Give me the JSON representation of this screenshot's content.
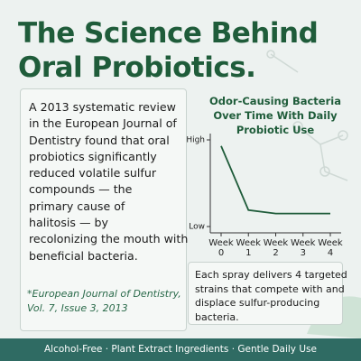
{
  "header": {
    "title_lines": [
      "The Science Behind",
      "Oral Probiotics."
    ]
  },
  "body": {
    "lines": [
      "A 2013 systematic review",
      "in the European Journal of",
      "Dentistry found that oral",
      "probiotics significantly",
      "reduced volatile sulfur",
      "compounds — the",
      "primary cause of",
      "halitosis — by",
      "recolonizing the mouth with",
      "beneficial bacteria."
    ]
  },
  "footnote": {
    "lines": [
      "*European Journal of Dentistry,",
      "Vol. 7, Issue 3, 2013"
    ]
  },
  "callout": {
    "lines": [
      "Each spray delivers 4 targeted",
      "strains that compete with and",
      "displace sulfur-producing",
      "bacteria."
    ]
  },
  "footer": {
    "text": "Alcohol-Free · Plant Extract Ingredients · Gentle Daily Use"
  },
  "chart_data": {
    "type": "line",
    "title_lines": [
      "Odor-Causing Bacteria",
      "Over Time With Daily",
      "Probiotic Use"
    ],
    "categories": [
      "Week 0",
      "Week 1",
      "Week 2",
      "Week 3",
      "Week 4"
    ],
    "values": [
      9.3,
      1.9,
      1.5,
      1.5,
      1.5
    ],
    "color": "#1f5c3a",
    "ylim": [
      0,
      10
    ],
    "yticks": [
      {
        "value": 10,
        "label": "High"
      },
      {
        "value": 0,
        "label": "Low"
      }
    ]
  }
}
